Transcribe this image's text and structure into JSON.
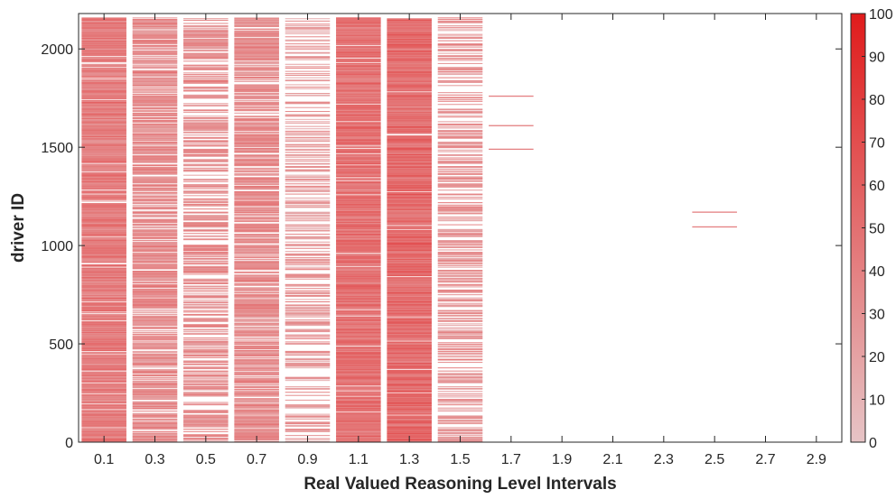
{
  "chart_data": {
    "type": "heatmap",
    "title": "",
    "xlabel": "Real Valued Reasoning Level Intervals",
    "ylabel": "driver ID",
    "x_tick_labels": [
      "0.1",
      "0.3",
      "0.5",
      "0.7",
      "0.9",
      "1.1",
      "1.3",
      "1.5",
      "1.7",
      "1.9",
      "2.1",
      "2.3",
      "2.5",
      "2.7",
      "2.9"
    ],
    "x_columns": [
      "0-0.2",
      "0.2-0.4",
      "0.4-0.6",
      "0.6-0.8",
      "0.8-1.0",
      "1.0-1.2",
      "1.2-1.4",
      "1.4-1.6",
      "1.6-1.8",
      "1.8-2.0",
      "2.0-2.2",
      "2.2-2.4",
      "2.4-2.6",
      "2.6-2.8",
      "2.8-3.0"
    ],
    "xlim": [
      0,
      3.0
    ],
    "ylim": [
      0,
      2180
    ],
    "y_ticks": [
      0,
      500,
      1000,
      1500,
      2000
    ],
    "max_driver_id": 2160,
    "colorbar": {
      "min": 0,
      "max": 100,
      "ticks": [
        0,
        10,
        20,
        30,
        40,
        50,
        60,
        70,
        80,
        90,
        100
      ],
      "color_low": "#e6c4c6",
      "color_high": "#e01b1b"
    },
    "column_fill_density": [
      0.95,
      0.82,
      0.62,
      0.82,
      0.42,
      0.97,
      0.97,
      0.52,
      0,
      0,
      0,
      0,
      0,
      0,
      0
    ],
    "column_mean_value": [
      45,
      35,
      32,
      35,
      28,
      52,
      55,
      32,
      0,
      0,
      0,
      0,
      0,
      0,
      0
    ],
    "sparse_entries": [
      {
        "column": 8,
        "driver_id": 1760,
        "value": 40
      },
      {
        "column": 8,
        "driver_id": 1610,
        "value": 40
      },
      {
        "column": 8,
        "driver_id": 1490,
        "value": 40
      },
      {
        "column": 12,
        "driver_id": 1170,
        "value": 40
      },
      {
        "column": 12,
        "driver_id": 1095,
        "value": 40
      }
    ]
  }
}
